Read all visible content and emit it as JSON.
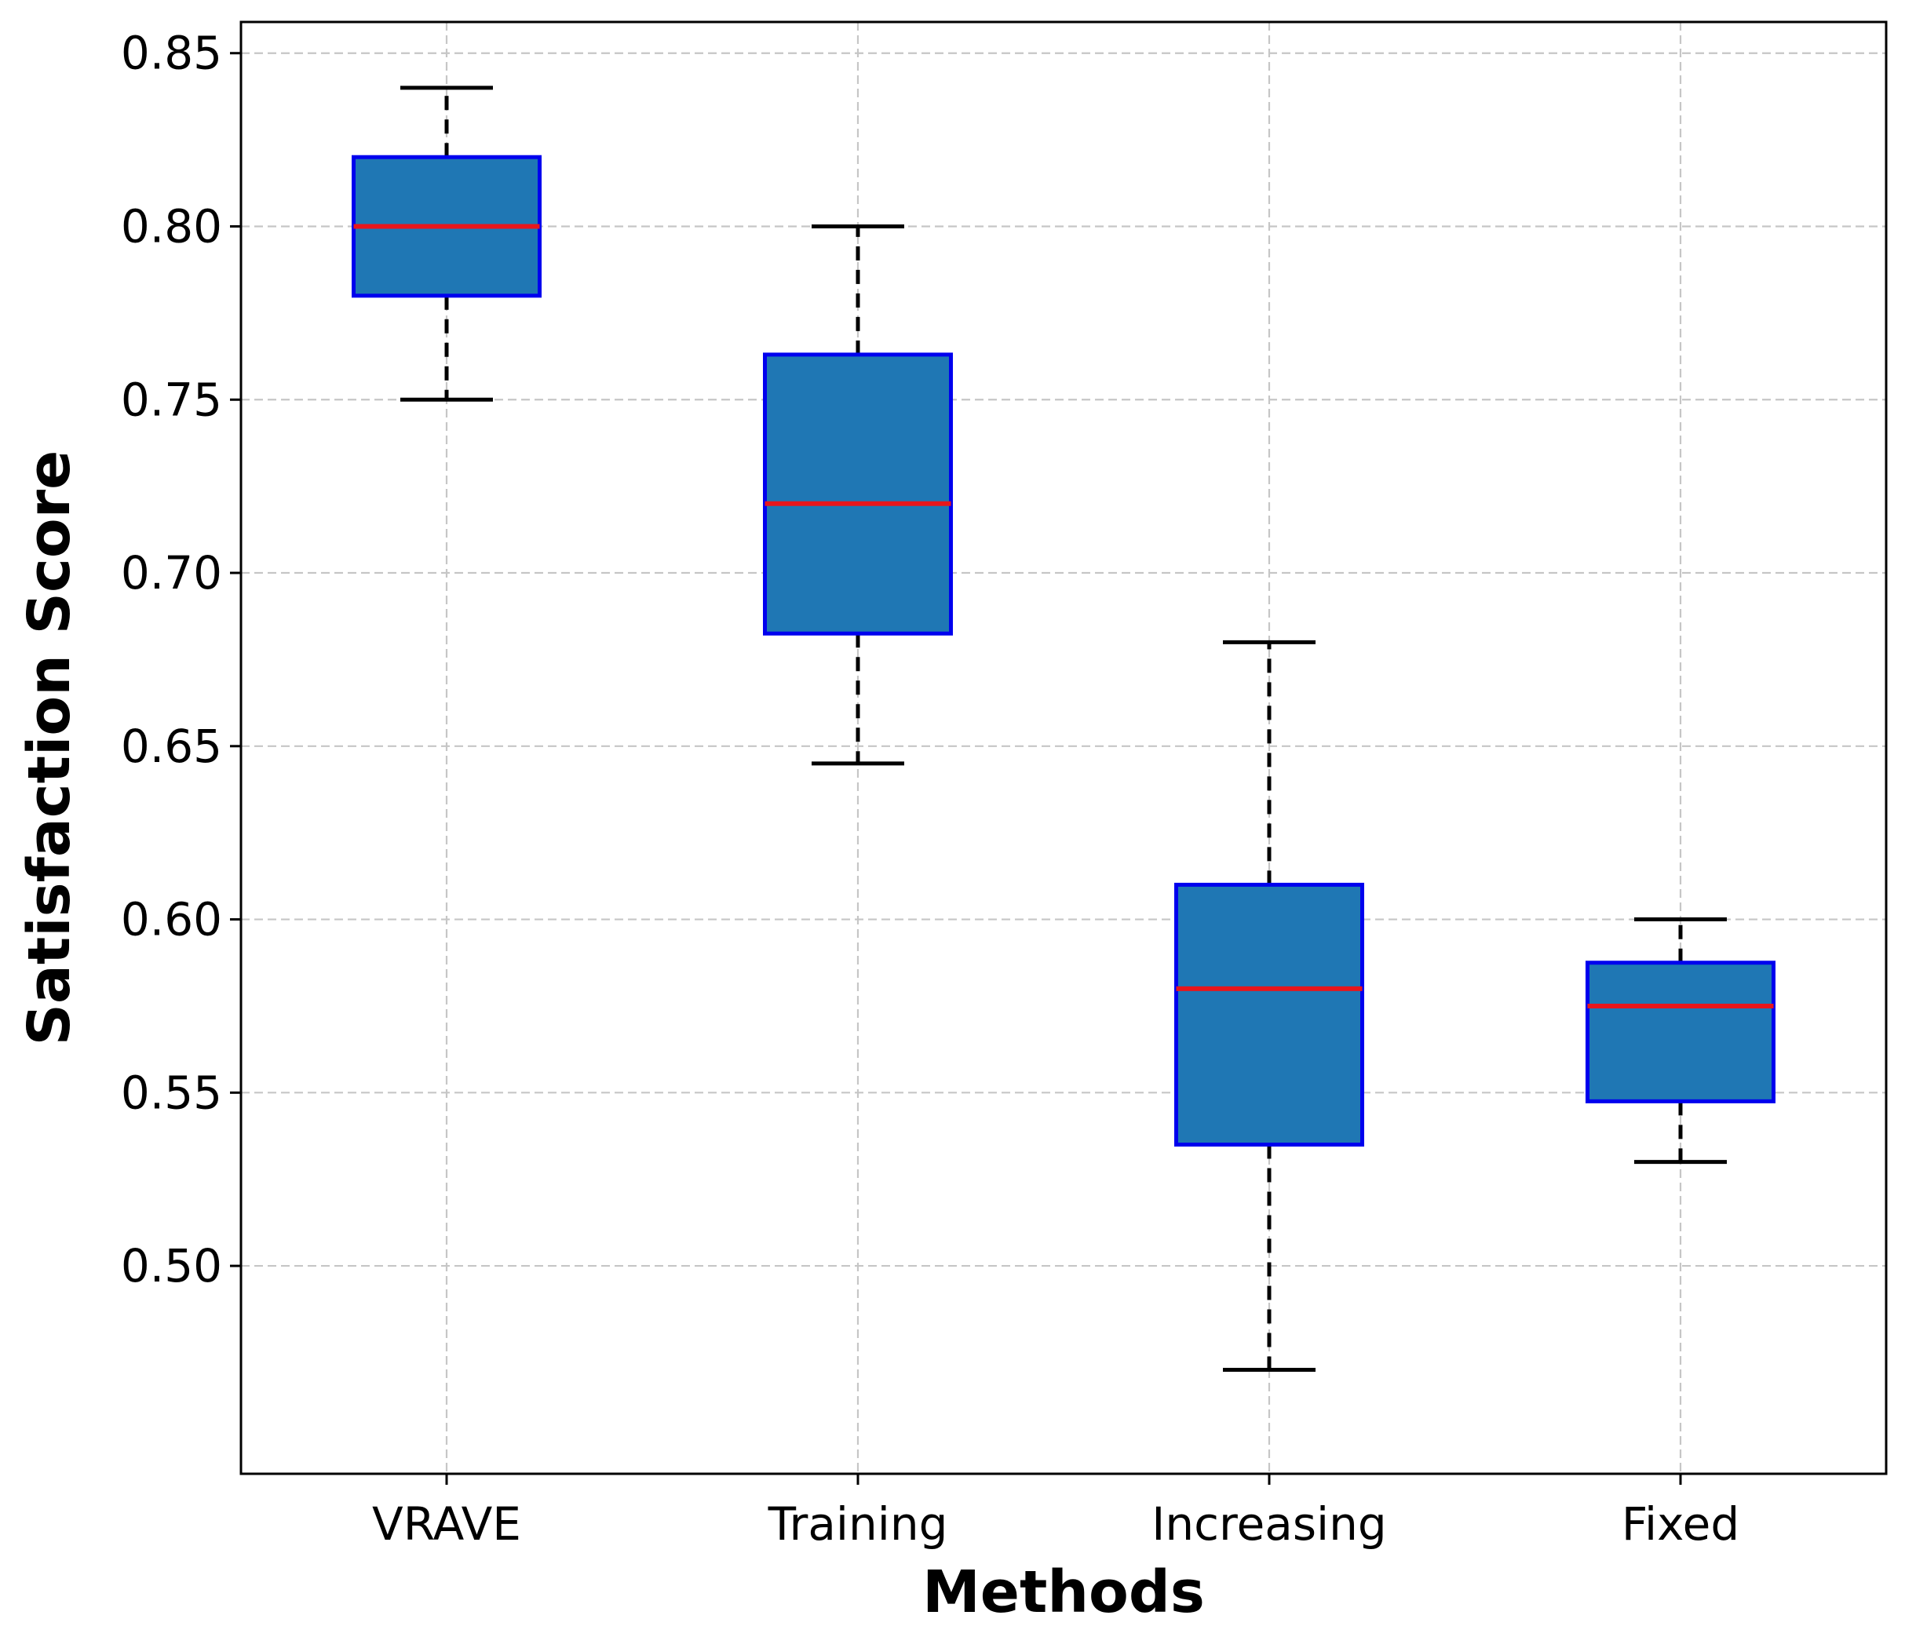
{
  "chart_data": {
    "type": "box",
    "title": "",
    "xlabel": "Methods",
    "ylabel": "Satisfaction Score",
    "ylim": [
      0.44,
      0.859
    ],
    "yticks": [
      0.5,
      0.55,
      0.6,
      0.65,
      0.7,
      0.75,
      0.8,
      0.85
    ],
    "ytick_labels": [
      "0.50",
      "0.55",
      "0.60",
      "0.65",
      "0.70",
      "0.75",
      "0.80",
      "0.85"
    ],
    "grid": true,
    "legend": "none",
    "categories": [
      "VRAVE",
      "Training",
      "Increasing",
      "Fixed"
    ],
    "boxes": [
      {
        "name": "VRAVE",
        "whisker_low": 0.75,
        "q1": 0.78,
        "median": 0.8,
        "q3": 0.82,
        "whisker_high": 0.84
      },
      {
        "name": "Training",
        "whisker_low": 0.645,
        "q1": 0.6825,
        "median": 0.72,
        "q3": 0.763,
        "whisker_high": 0.8
      },
      {
        "name": "Increasing",
        "whisker_low": 0.47,
        "q1": 0.535,
        "median": 0.58,
        "q3": 0.61,
        "whisker_high": 0.68
      },
      {
        "name": "Fixed",
        "whisker_low": 0.53,
        "q1": 0.5475,
        "median": 0.575,
        "q3": 0.5875,
        "whisker_high": 0.6
      }
    ],
    "colors": {
      "box_fill": "#1f77b4",
      "box_edge": "#0000ee",
      "median": "#e8161b",
      "whisker": "#000000",
      "grid": "#c6c6c6",
      "axis": "#000000"
    }
  }
}
